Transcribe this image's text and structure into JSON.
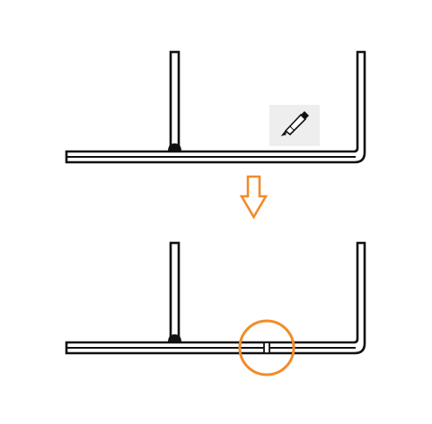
{
  "diagram": {
    "background": "#ffffff",
    "line_color": "#111111",
    "accent_color": "#f28c28",
    "icon_bg": "#eeeeee",
    "icons": {
      "tool": "soldering-iron-icon",
      "arrow": "down-arrow-icon",
      "highlight": "highlight-circle"
    },
    "steps": [
      "before-assembly",
      "after-assembly"
    ]
  }
}
